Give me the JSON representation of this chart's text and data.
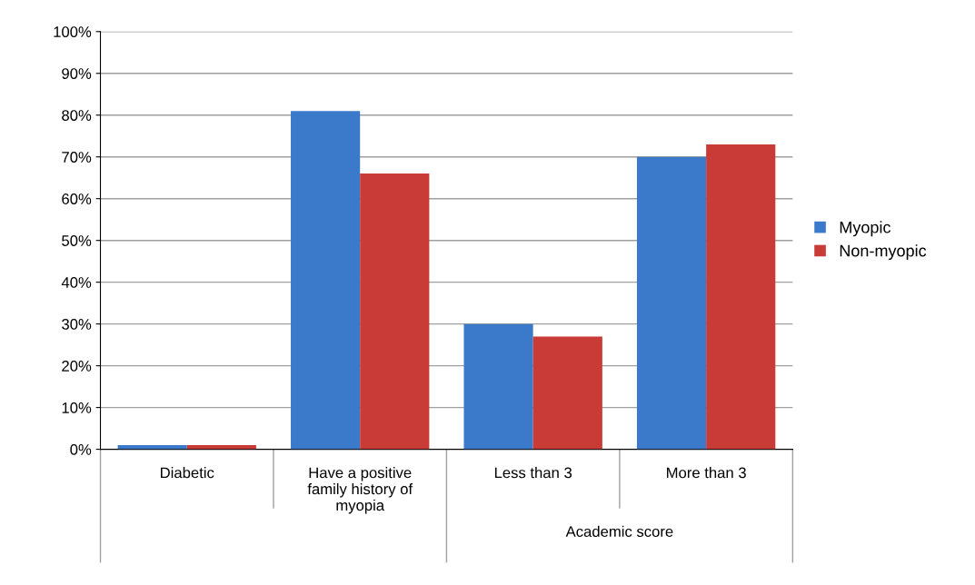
{
  "chart_data": {
    "type": "bar",
    "categories": [
      "Diabetic",
      "Have a positive\nfamily history of\nmyopia",
      "Less than 3",
      "More than 3"
    ],
    "series": [
      {
        "name": "Myopic",
        "color": "#3b7acb",
        "values": [
          1,
          81,
          30,
          70
        ]
      },
      {
        "name": "Non-myopic",
        "color": "#c83b36",
        "values": [
          1,
          66,
          27,
          73
        ]
      }
    ],
    "ylim": [
      0,
      100
    ],
    "yticks": [
      {
        "value": 0,
        "label": "0%"
      },
      {
        "value": 10,
        "label": "10%"
      },
      {
        "value": 20,
        "label": "20%"
      },
      {
        "value": 30,
        "label": "30%"
      },
      {
        "value": 40,
        "label": "40%"
      },
      {
        "value": 50,
        "label": "50%"
      },
      {
        "value": 60,
        "label": "60%"
      },
      {
        "value": 70,
        "label": "70%"
      },
      {
        "value": 80,
        "label": "80%"
      },
      {
        "value": 90,
        "label": "90%"
      },
      {
        "value": 100,
        "label": "100%"
      }
    ],
    "annotations": [
      "Academic score"
    ],
    "grid": "y",
    "legend": "right"
  }
}
